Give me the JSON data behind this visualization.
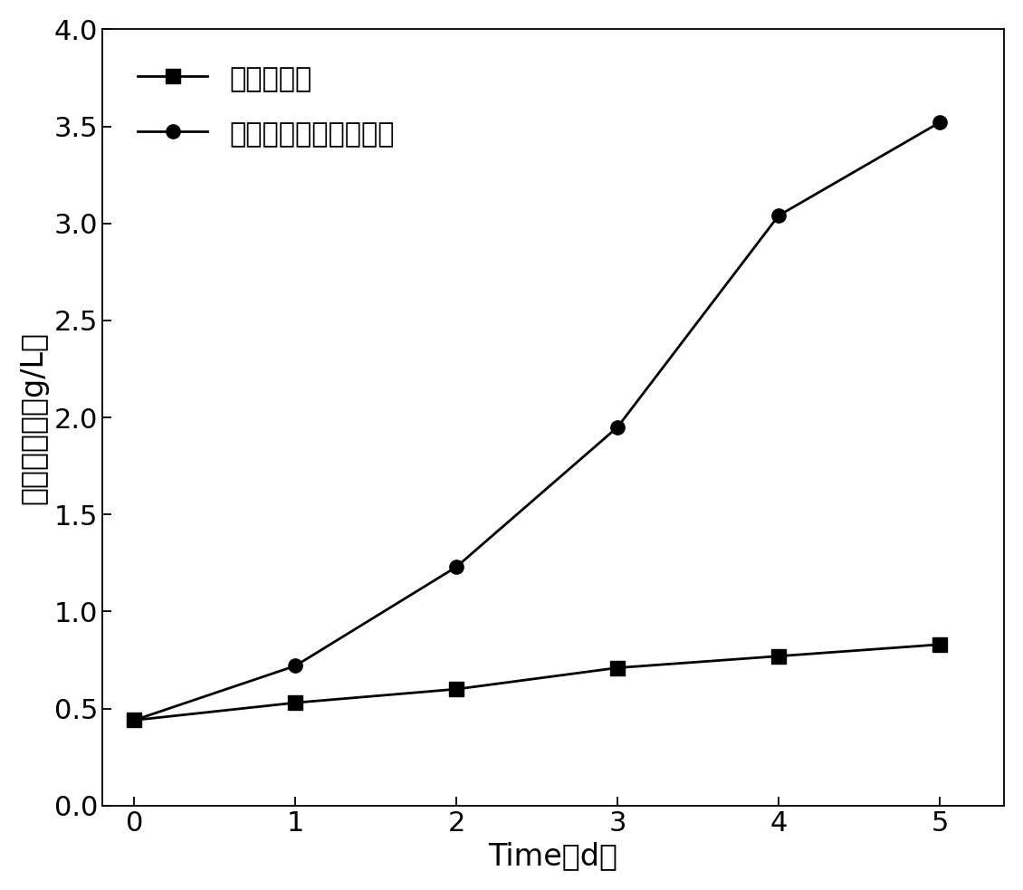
{
  "x": [
    0,
    1,
    2,
    3,
    4,
    5
  ],
  "series1_label": "发酵罐培养",
  "series1_y": [
    0.44,
    0.53,
    0.6,
    0.71,
    0.77,
    0.83
  ],
  "series1_marker": "s",
  "series2_label": "发酵罐与管道串联培养",
  "series2_y": [
    0.44,
    0.72,
    1.23,
    1.95,
    3.04,
    3.52
  ],
  "series2_marker": "o",
  "line_color": "#000000",
  "xlabel": "Time（d）",
  "ylabel": "藻细胞干重（g/L）",
  "xlim": [
    -0.2,
    5.4
  ],
  "ylim": [
    0.0,
    4.0
  ],
  "yticks": [
    0.0,
    0.5,
    1.0,
    1.5,
    2.0,
    2.5,
    3.0,
    3.5,
    4.0
  ],
  "xticks": [
    0,
    1,
    2,
    3,
    4,
    5
  ],
  "label_fontsize": 24,
  "tick_fontsize": 22,
  "legend_fontsize": 22,
  "marker_size": 11,
  "line_width": 2.0,
  "background_color": "#ffffff"
}
